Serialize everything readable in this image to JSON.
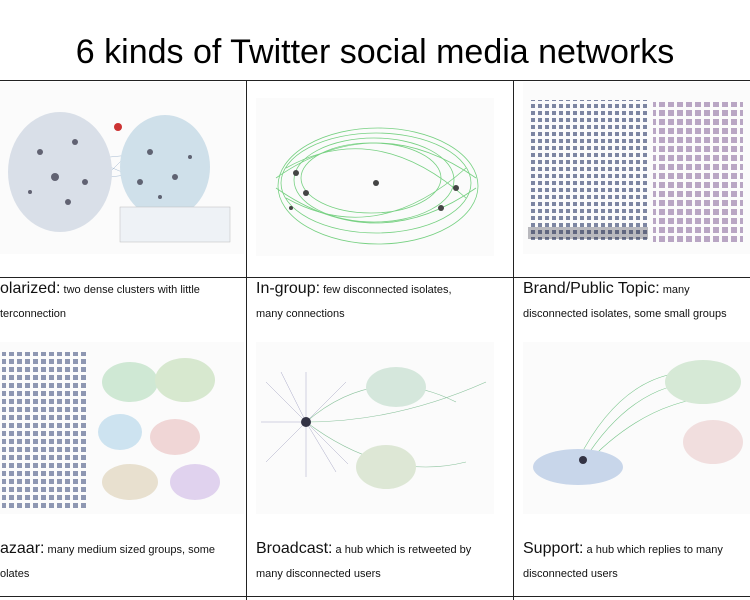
{
  "title": "6 kinds of Twitter social media networks",
  "panels": [
    {
      "head": "olarized:",
      "desc_line1": "two dense clusters with little",
      "desc_line2": "terconnection"
    },
    {
      "head": "In-group:",
      "desc_line1": "few disconnected isolates,",
      "desc_line2": "many connections"
    },
    {
      "head": "Brand/Public Topic:",
      "desc_line1": "many",
      "desc_line2": "disconnected isolates, some small groups"
    },
    {
      "head": "azaar:",
      "desc_line1": "many medium sized groups, some",
      "desc_line2": "olates"
    },
    {
      "head": "Broadcast:",
      "desc_line1": "a hub which is retweeted by",
      "desc_line2": "many disconnected users"
    },
    {
      "head": "Support:",
      "desc_line1": "a hub which replies to many",
      "desc_line2": "disconnected users"
    }
  ]
}
